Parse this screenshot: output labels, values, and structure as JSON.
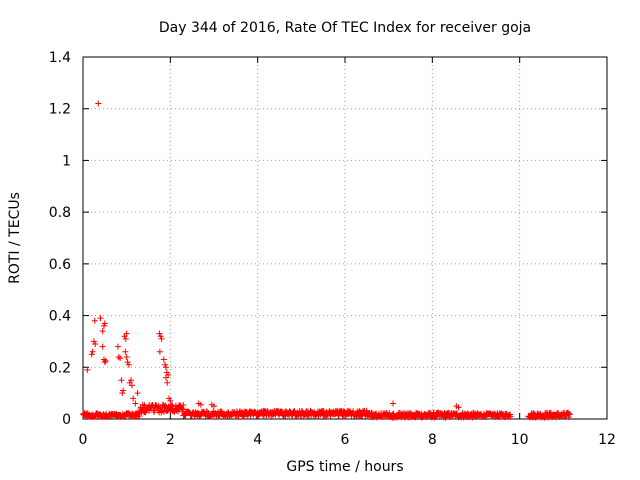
{
  "chart_data": {
    "type": "scatter",
    "title": "Day 344 of 2016, Rate Of TEC Index for receiver goja",
    "xlabel": "GPS time / hours",
    "ylabel": "ROTI / TECUs",
    "xlim": [
      0,
      12
    ],
    "ylim": [
      0,
      1.4
    ],
    "xticks": [
      0,
      2,
      4,
      6,
      8,
      10,
      12
    ],
    "yticks": [
      0,
      0.2,
      0.4,
      0.6,
      0.8,
      1,
      1.2,
      1.4
    ],
    "xtick_labels": [
      "0",
      "2",
      "4",
      "6",
      "8",
      "10",
      "12"
    ],
    "ytick_labels": [
      "0",
      "0.2",
      "0.4",
      "0.6",
      "0.8",
      "1",
      "1.2",
      "1.4"
    ],
    "grid": true,
    "marker": "+",
    "color": "#ff0000",
    "series": [
      {
        "name": "ROTI",
        "points": [
          [
            0.35,
            1.22
          ],
          [
            0.1,
            0.19
          ],
          [
            0.2,
            0.25
          ],
          [
            0.22,
            0.26
          ],
          [
            0.25,
            0.3
          ],
          [
            0.28,
            0.29
          ],
          [
            0.27,
            0.38
          ],
          [
            0.4,
            0.39
          ],
          [
            0.45,
            0.34
          ],
          [
            0.48,
            0.36
          ],
          [
            0.5,
            0.37
          ],
          [
            0.45,
            0.28
          ],
          [
            0.48,
            0.23
          ],
          [
            0.5,
            0.22
          ],
          [
            0.52,
            0.225
          ],
          [
            0.8,
            0.28
          ],
          [
            0.82,
            0.24
          ],
          [
            0.85,
            0.235
          ],
          [
            0.88,
            0.15
          ],
          [
            0.9,
            0.1
          ],
          [
            0.92,
            0.11
          ],
          [
            0.95,
            0.32
          ],
          [
            0.98,
            0.31
          ],
          [
            1.0,
            0.33
          ],
          [
            0.97,
            0.26
          ],
          [
            1.0,
            0.24
          ],
          [
            1.02,
            0.22
          ],
          [
            1.05,
            0.21
          ],
          [
            1.07,
            0.14
          ],
          [
            1.1,
            0.15
          ],
          [
            1.12,
            0.13
          ],
          [
            1.15,
            0.08
          ],
          [
            1.2,
            0.06
          ],
          [
            1.25,
            0.1
          ],
          [
            1.75,
            0.33
          ],
          [
            1.78,
            0.32
          ],
          [
            1.8,
            0.31
          ],
          [
            1.76,
            0.26
          ],
          [
            1.85,
            0.23
          ],
          [
            1.88,
            0.21
          ],
          [
            1.9,
            0.2
          ],
          [
            1.92,
            0.18
          ],
          [
            1.9,
            0.16
          ],
          [
            1.95,
            0.17
          ],
          [
            1.93,
            0.14
          ],
          [
            1.97,
            0.08
          ],
          [
            2.0,
            0.07
          ],
          [
            2.05,
            0.05
          ],
          [
            2.65,
            0.06
          ],
          [
            2.7,
            0.055
          ],
          [
            2.95,
            0.055
          ],
          [
            3.0,
            0.05
          ],
          [
            7.1,
            0.06
          ],
          [
            8.55,
            0.05
          ],
          [
            8.6,
            0.045
          ]
        ],
        "baseline_segments": [
          {
            "x_start": 0.0,
            "x_end": 1.3,
            "level": 0.015,
            "spread": 0.015
          },
          {
            "x_start": 1.3,
            "x_end": 2.3,
            "level": 0.04,
            "spread": 0.03
          },
          {
            "x_start": 2.3,
            "x_end": 4.0,
            "level": 0.02,
            "spread": 0.02
          },
          {
            "x_start": 4.0,
            "x_end": 6.5,
            "level": 0.022,
            "spread": 0.02
          },
          {
            "x_start": 6.5,
            "x_end": 9.0,
            "level": 0.015,
            "spread": 0.02
          },
          {
            "x_start": 9.0,
            "x_end": 9.8,
            "level": 0.015,
            "spread": 0.015
          },
          {
            "x_start": 10.2,
            "x_end": 11.15,
            "level": 0.015,
            "spread": 0.02
          }
        ]
      }
    ]
  }
}
